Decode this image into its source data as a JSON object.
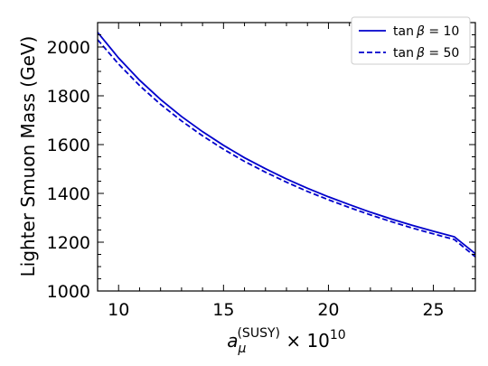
{
  "chart_data": {
    "type": "line",
    "title": "",
    "xlabel": {
      "base": "a",
      "subscript": "μ",
      "superscript": "(SUSY)",
      "suffix": " × 10",
      "suffix_sup": "10"
    },
    "ylabel": "Lighter Smuon Mass (GeV)",
    "xlim": [
      9,
      27
    ],
    "ylim": [
      1000,
      2100
    ],
    "xticks": [
      10,
      15,
      20,
      25
    ],
    "yticks": [
      1000,
      1200,
      1400,
      1600,
      1800,
      2000
    ],
    "grid": false,
    "legend_position": "top-right",
    "series": [
      {
        "name": "tan β = 10",
        "legend_label": {
          "pre": "tan",
          "beta": "β",
          "post": " = 10"
        },
        "color": "#0000cc",
        "style": "solid",
        "x": [
          9,
          10,
          11,
          12,
          13,
          14,
          15,
          16,
          17,
          18,
          19,
          20,
          21,
          22,
          23,
          24,
          25,
          26,
          27
        ],
        "y": [
          2060,
          1955,
          1864,
          1785,
          1715,
          1653,
          1597,
          1546,
          1501,
          1459,
          1421,
          1386,
          1354,
          1323,
          1295,
          1269,
          1245,
          1222,
          1153
        ]
      },
      {
        "name": "tan β = 50",
        "legend_label": {
          "pre": "tan",
          "beta": "β",
          "post": " = 50"
        },
        "color": "#0000cc",
        "style": "dashed",
        "x": [
          9,
          10,
          11,
          12,
          13,
          14,
          15,
          16,
          17,
          18,
          19,
          20,
          21,
          22,
          23,
          24,
          25,
          26,
          27
        ],
        "y": [
          2030,
          1930,
          1842,
          1765,
          1697,
          1636,
          1581,
          1531,
          1487,
          1446,
          1408,
          1374,
          1342,
          1312,
          1284,
          1258,
          1234,
          1211,
          1140
        ]
      }
    ]
  }
}
